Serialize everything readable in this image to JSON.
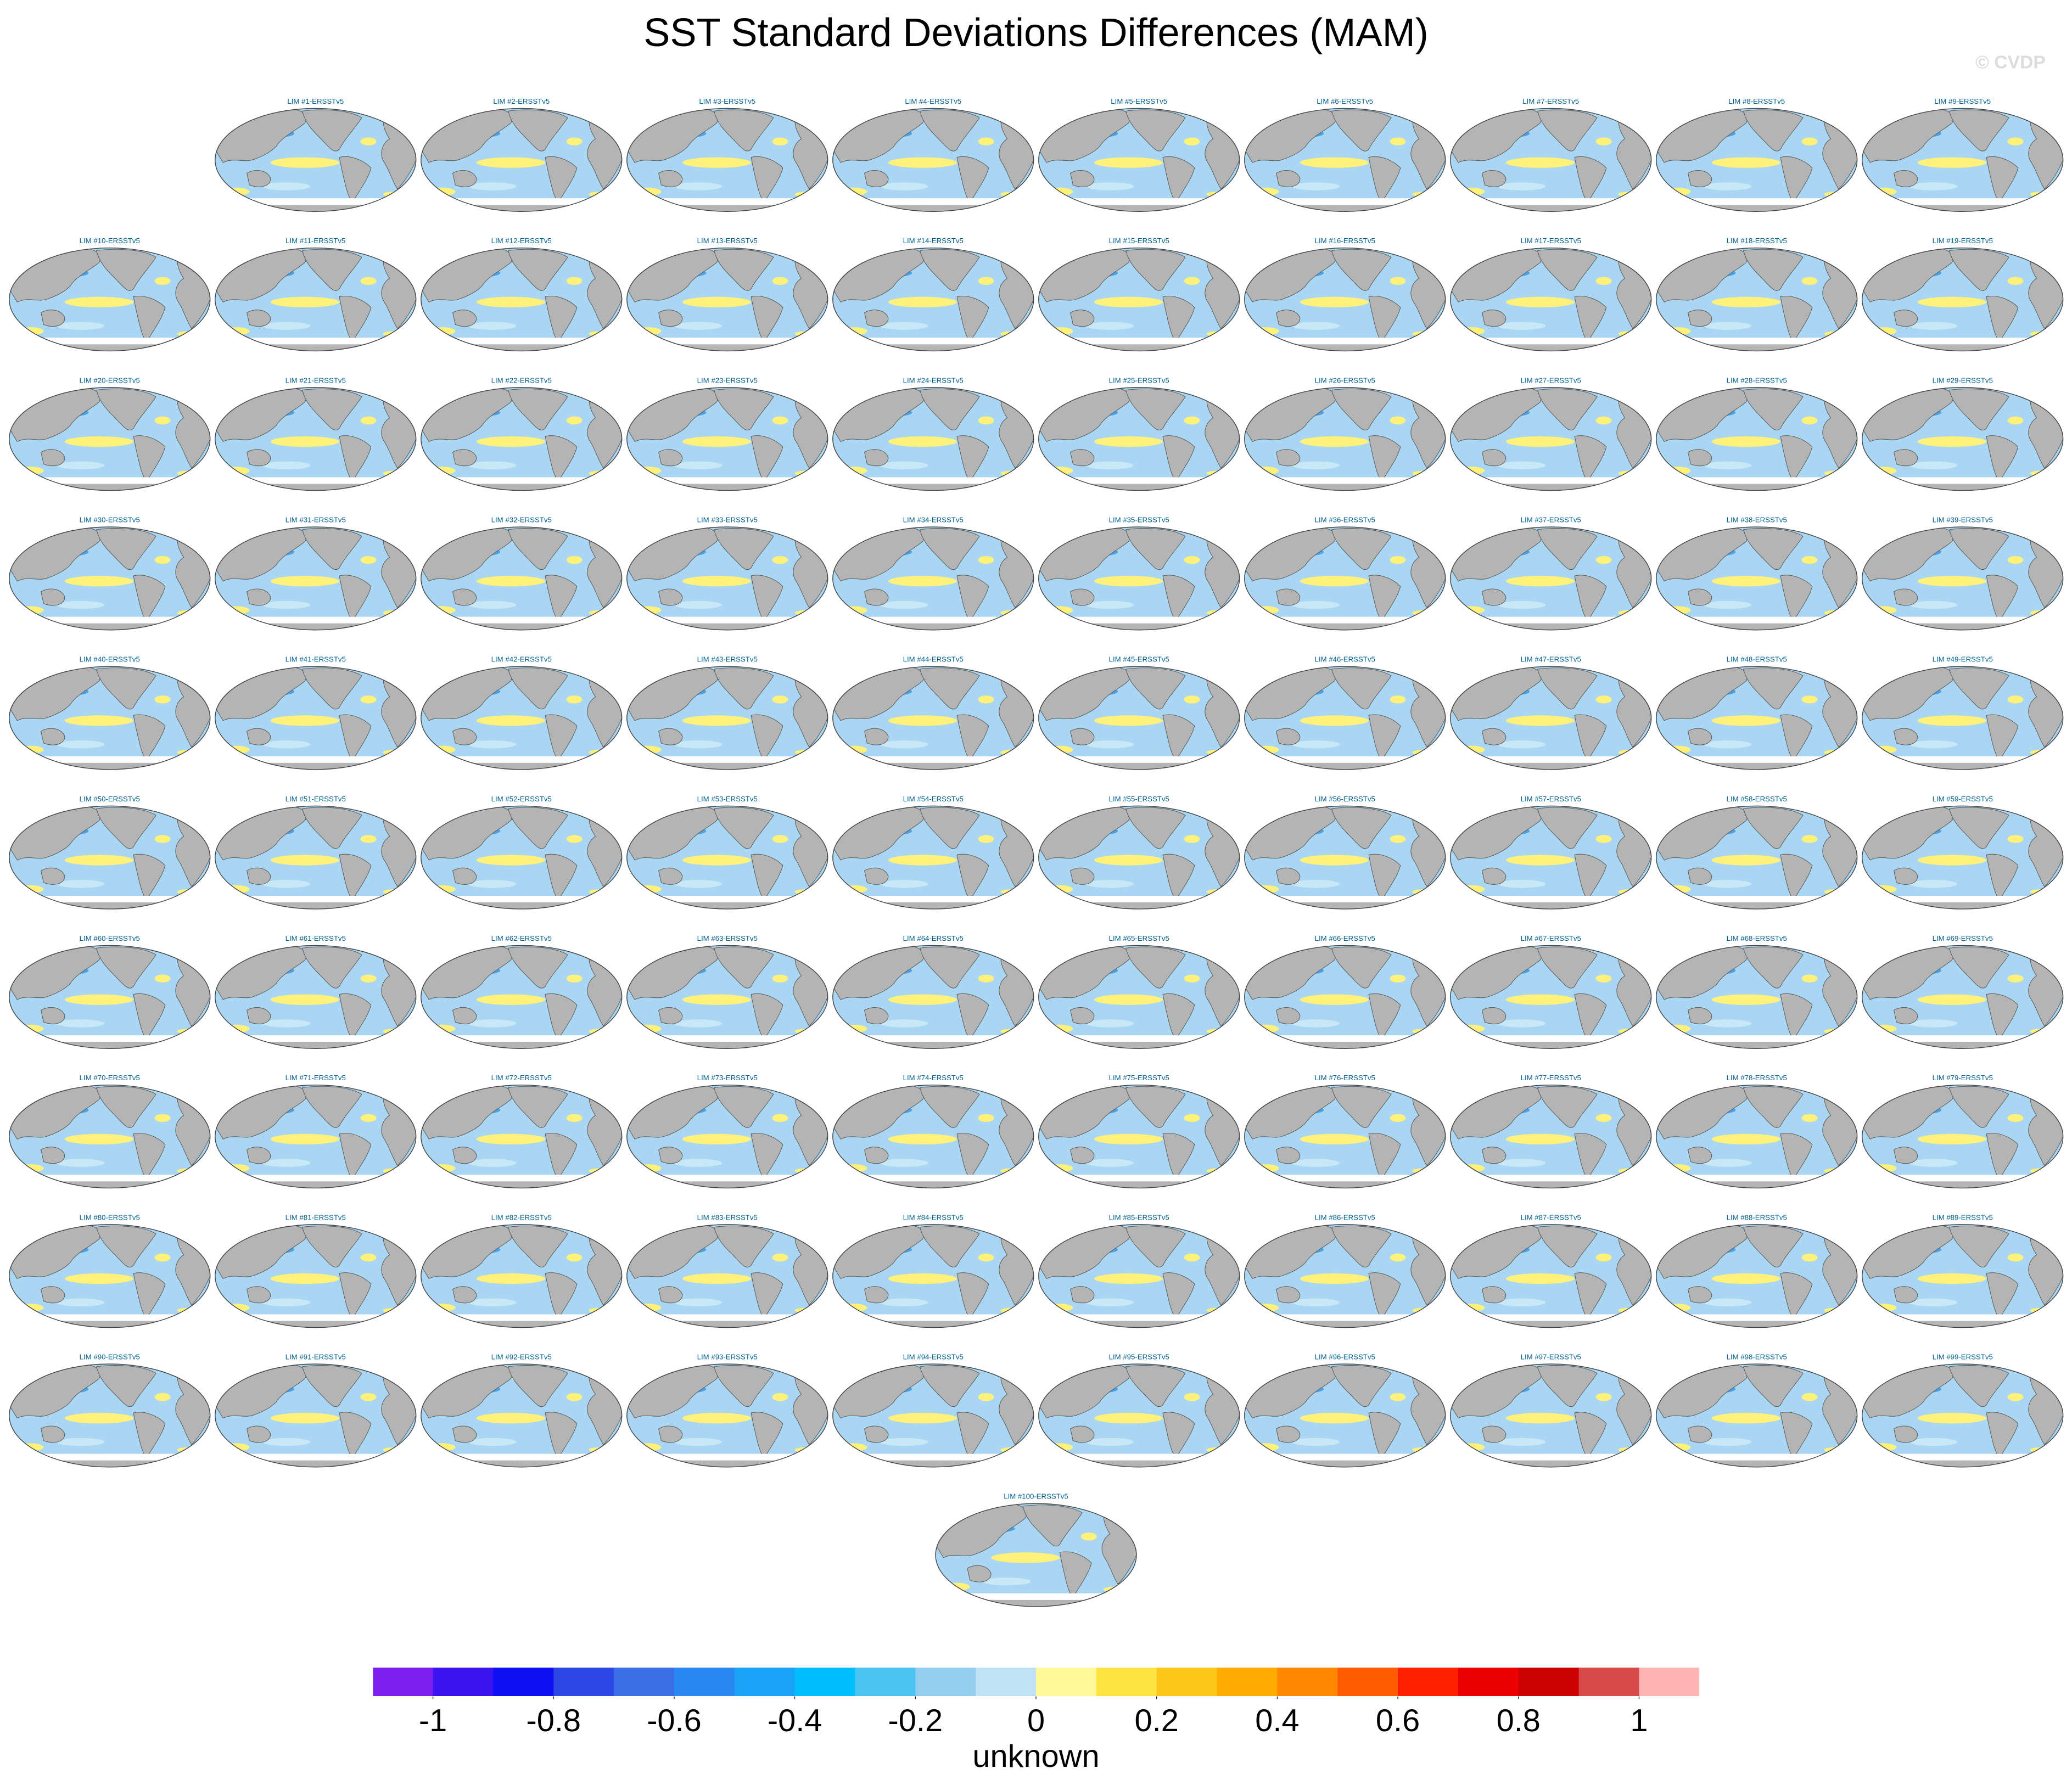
{
  "title": "SST Standard Deviations Differences (MAM)",
  "copyright": "© CVDP",
  "panels": [
    "LIM #1-ERSSTv5",
    "LIM #2-ERSSTv5",
    "LIM #3-ERSSTv5",
    "LIM #4-ERSSTv5",
    "LIM #5-ERSSTv5",
    "LIM #6-ERSSTv5",
    "LIM #7-ERSSTv5",
    "LIM #8-ERSSTv5",
    "LIM #9-ERSSTv5",
    "LIM #10-ERSSTv5",
    "LIM #11-ERSSTv5",
    "LIM #12-ERSSTv5",
    "LIM #13-ERSSTv5",
    "LIM #14-ERSSTv5",
    "LIM #15-ERSSTv5",
    "LIM #16-ERSSTv5",
    "LIM #17-ERSSTv5",
    "LIM #18-ERSSTv5",
    "LIM #19-ERSSTv5",
    "LIM #20-ERSSTv5",
    "LIM #21-ERSSTv5",
    "LIM #22-ERSSTv5",
    "LIM #23-ERSSTv5",
    "LIM #24-ERSSTv5",
    "LIM #25-ERSSTv5",
    "LIM #26-ERSSTv5",
    "LIM #27-ERSSTv5",
    "LIM #28-ERSSTv5",
    "LIM #29-ERSSTv5",
    "LIM #30-ERSSTv5",
    "LIM #31-ERSSTv5",
    "LIM #32-ERSSTv5",
    "LIM #33-ERSSTv5",
    "LIM #34-ERSSTv5",
    "LIM #35-ERSSTv5",
    "LIM #36-ERSSTv5",
    "LIM #37-ERSSTv5",
    "LIM #38-ERSSTv5",
    "LIM #39-ERSSTv5",
    "LIM #40-ERSSTv5",
    "LIM #41-ERSSTv5",
    "LIM #42-ERSSTv5",
    "LIM #43-ERSSTv5",
    "LIM #44-ERSSTv5",
    "LIM #45-ERSSTv5",
    "LIM #46-ERSSTv5",
    "LIM #47-ERSSTv5",
    "LIM #48-ERSSTv5",
    "LIM #49-ERSSTv5",
    "LIM #50-ERSSTv5",
    "LIM #51-ERSSTv5",
    "LIM #52-ERSSTv5",
    "LIM #53-ERSSTv5",
    "LIM #54-ERSSTv5",
    "LIM #55-ERSSTv5",
    "LIM #56-ERSSTv5",
    "LIM #57-ERSSTv5",
    "LIM #58-ERSSTv5",
    "LIM #59-ERSSTv5",
    "LIM #60-ERSSTv5",
    "LIM #61-ERSSTv5",
    "LIM #62-ERSSTv5",
    "LIM #63-ERSSTv5",
    "LIM #64-ERSSTv5",
    "LIM #65-ERSSTv5",
    "LIM #66-ERSSTv5",
    "LIM #67-ERSSTv5",
    "LIM #68-ERSSTv5",
    "LIM #69-ERSSTv5",
    "LIM #70-ERSSTv5",
    "LIM #71-ERSSTv5",
    "LIM #72-ERSSTv5",
    "LIM #73-ERSSTv5",
    "LIM #74-ERSSTv5",
    "LIM #75-ERSSTv5",
    "LIM #76-ERSSTv5",
    "LIM #77-ERSSTv5",
    "LIM #78-ERSSTv5",
    "LIM #79-ERSSTv5",
    "LIM #80-ERSSTv5",
    "LIM #81-ERSSTv5",
    "LIM #82-ERSSTv5",
    "LIM #83-ERSSTv5",
    "LIM #84-ERSSTv5",
    "LIM #85-ERSSTv5",
    "LIM #86-ERSSTv5",
    "LIM #87-ERSSTv5",
    "LIM #88-ERSSTv5",
    "LIM #89-ERSSTv5",
    "LIM #90-ERSSTv5",
    "LIM #91-ERSSTv5",
    "LIM #92-ERSSTv5",
    "LIM #93-ERSSTv5",
    "LIM #94-ERSSTv5",
    "LIM #95-ERSSTv5",
    "LIM #96-ERSSTv5",
    "LIM #97-ERSSTv5",
    "LIM #98-ERSSTv5",
    "LIM #99-ERSSTv5",
    "LIM #100-ERSSTv5"
  ],
  "colorbar": {
    "levels": [
      -1,
      -0.9,
      -0.8,
      -0.7,
      -0.6,
      -0.5,
      -0.4,
      -0.3,
      -0.2,
      -0.1,
      0,
      0.1,
      0.2,
      0.3,
      0.4,
      0.5,
      0.6,
      0.7,
      0.8,
      0.9,
      1
    ],
    "colors": [
      "#7c1ff0",
      "#3b12f0",
      "#0f0ff5",
      "#2b48e6",
      "#3a6ee4",
      "#2a88f5",
      "#1aa2f7",
      "#00bfff",
      "#4cc4f2",
      "#94cdee",
      "#bfe3f5",
      "#fff799",
      "#ffe341",
      "#ffc61a",
      "#ffab00",
      "#ff8800",
      "#ff5a00",
      "#ff2000",
      "#ee0000",
      "#cc0000",
      "#d94848",
      "#ffb3b3"
    ],
    "ticks": [
      -1,
      -0.8,
      -0.6,
      -0.4,
      -0.2,
      0,
      0.2,
      0.4,
      0.6,
      0.8,
      1
    ],
    "label": "unknown"
  }
}
